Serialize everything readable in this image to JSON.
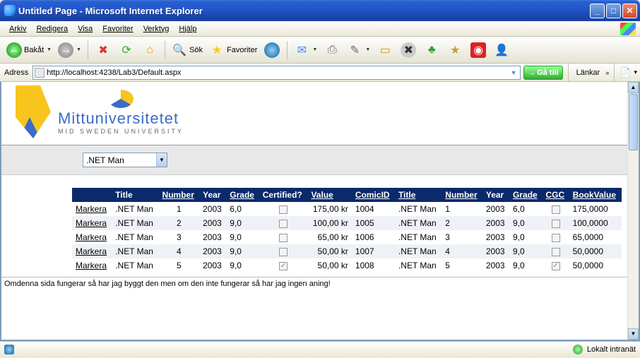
{
  "window": {
    "title": "Untitled Page - Microsoft Internet Explorer"
  },
  "menu": {
    "items": [
      "Arkiv",
      "Redigera",
      "Visa",
      "Favoriter",
      "Verktyg",
      "Hjälp"
    ]
  },
  "toolbar": {
    "back": "Bakåt",
    "search": "Sök",
    "favorites": "Favoriter"
  },
  "address": {
    "label": "Adress",
    "url": "http://localhost:4238/Lab3/Default.aspx",
    "go": "Gå till",
    "links": "Länkar"
  },
  "logo": {
    "line1": "Mittuniversitetet",
    "line2": "MID SWEDEN UNIVERSITY"
  },
  "dropdown": {
    "selected": ".NET Man"
  },
  "grid": {
    "headers": [
      "",
      "Title",
      "Number",
      "Year",
      "Grade",
      "Certified?",
      "Value",
      "ComicID",
      "Title",
      "Number",
      "Year",
      "Grade",
      "CGC",
      "BookValue"
    ],
    "markera": "Markera",
    "rows": [
      {
        "title1": ".NET Man",
        "number1": "1",
        "year1": "2003",
        "grade1": "6,0",
        "cert": false,
        "value": "175,00 kr",
        "comicid": "1004",
        "title2": ".NET Man",
        "number2": "1",
        "year2": "2003",
        "grade2": "6,0",
        "cgc": false,
        "bookvalue": "175,0000"
      },
      {
        "title1": ".NET Man",
        "number1": "2",
        "year1": "2003",
        "grade1": "9,0",
        "cert": false,
        "value": "100,00 kr",
        "comicid": "1005",
        "title2": ".NET Man",
        "number2": "2",
        "year2": "2003",
        "grade2": "9,0",
        "cgc": false,
        "bookvalue": "100,0000"
      },
      {
        "title1": ".NET Man",
        "number1": "3",
        "year1": "2003",
        "grade1": "9,0",
        "cert": false,
        "value": "65,00 kr",
        "comicid": "1006",
        "title2": ".NET Man",
        "number2": "3",
        "year2": "2003",
        "grade2": "9,0",
        "cgc": false,
        "bookvalue": "65,0000"
      },
      {
        "title1": ".NET Man",
        "number1": "4",
        "year1": "2003",
        "grade1": "9,0",
        "cert": false,
        "value": "50,00 kr",
        "comicid": "1007",
        "title2": ".NET Man",
        "number2": "4",
        "year2": "2003",
        "grade2": "9,0",
        "cgc": false,
        "bookvalue": "50,0000"
      },
      {
        "title1": ".NET Man",
        "number1": "5",
        "year1": "2003",
        "grade1": "9,0",
        "cert": true,
        "value": "50,00 kr",
        "comicid": "1008",
        "title2": ".NET Man",
        "number2": "5",
        "year2": "2003",
        "grade2": "9,0",
        "cgc": true,
        "bookvalue": "50,0000"
      }
    ]
  },
  "footnote": "Omdenna sida fungerar så har jag byggt den men om den inte fungerar så har jag ingen aning!",
  "status": {
    "zone": "Lokalt intranät"
  }
}
